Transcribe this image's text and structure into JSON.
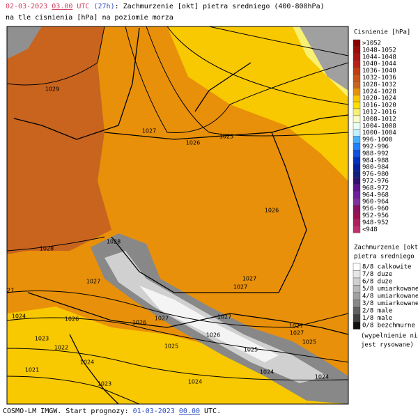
{
  "header": {
    "date": "02-03-2023",
    "time": "03.00",
    "utc": "UTC",
    "lead": "(27h)",
    "title": ": Zachmurzenie [okt] pietra sredniego (400-800hPa)",
    "subtitle": "na tle cisnienia [hPa] na poziomie morza"
  },
  "pressure_legend": {
    "title": "Cisnienie [hPa]",
    "items": [
      {
        "label": ">1052",
        "color": "#8b0000"
      },
      {
        "label": "1048-1052",
        "color": "#9c0a0a"
      },
      {
        "label": "1044-1048",
        "color": "#ac1414"
      },
      {
        "label": "1040-1044",
        "color": "#bc2018"
      },
      {
        "label": "1036-1040",
        "color": "#c43c14"
      },
      {
        "label": "1032-1036",
        "color": "#cc5418"
      },
      {
        "label": "1028-1032",
        "color": "#c8641e"
      },
      {
        "label": "1024-1028",
        "color": "#e8900a"
      },
      {
        "label": "1020-1024",
        "color": "#f8c800"
      },
      {
        "label": "1016-1020",
        "color": "#fbe000"
      },
      {
        "label": "1012-1016",
        "color": "#f8f070"
      },
      {
        "label": "1008-1012",
        "color": "#fafac8"
      },
      {
        "label": "1004-1008",
        "color": "#e8fff0"
      },
      {
        "label": "1000-1004",
        "color": "#c0f0ff"
      },
      {
        "label": "996-1000",
        "color": "#40b0ff"
      },
      {
        "label": "992-996",
        "color": "#2080ff"
      },
      {
        "label": "988-992",
        "color": "#1050e0"
      },
      {
        "label": "984-988",
        "color": "#0030c0"
      },
      {
        "label": "980-984",
        "color": "#0020a0"
      },
      {
        "label": "976-980",
        "color": "#102080"
      },
      {
        "label": "972-976",
        "color": "#301070"
      },
      {
        "label": "968-972",
        "color": "#601090"
      },
      {
        "label": "964-968",
        "color": "#7020a0"
      },
      {
        "label": "960-964",
        "color": "#8030a0"
      },
      {
        "label": "956-960",
        "color": "#901060"
      },
      {
        "label": "952-956",
        "color": "#a01050"
      },
      {
        "label": "948-952",
        "color": "#b02060"
      },
      {
        "label": "<948",
        "color": "#c03070"
      }
    ]
  },
  "cloud_legend": {
    "title": [
      "Zachmurzenie [okt]",
      "pietra sredniego"
    ],
    "items": [
      {
        "label": "8/8 calkowite",
        "color": "#ffffff"
      },
      {
        "label": "7/8 duze",
        "color": "#e6e6e6"
      },
      {
        "label": "6/8 duze",
        "color": "#d0d0d0"
      },
      {
        "label": "5/8 umiarkowane",
        "color": "#b8b8b8"
      },
      {
        "label": "4/8 umiarkowane",
        "color": "#a0a0a0"
      },
      {
        "label": "3/8 umiarkowane",
        "color": "#888888"
      },
      {
        "label": "2/8 male",
        "color": "#606060"
      },
      {
        "label": "1/8 male",
        "color": "#404040"
      },
      {
        "label": "0/8 bezchmurne",
        "color": "#101010"
      }
    ],
    "note": [
      "(wypelnienie nie",
      "jest rysowane)"
    ]
  },
  "isobar_labels": [
    1029,
    1027,
    1026,
    1025,
    1026,
    1028,
    1028,
    1027,
    27,
    1027,
    1027,
    1024,
    1026,
    1026,
    1027,
    1027,
    1027,
    1023,
    1022,
    1025,
    1026,
    1025,
    1027,
    1025,
    1024,
    1021,
    1024,
    1024,
    1023,
    1024
  ],
  "footer": {
    "text": "COSMO-LM IMGW. Start prognozy: ",
    "date": "01-03-2023",
    "time": "00.00",
    "utc": " UTC."
  }
}
